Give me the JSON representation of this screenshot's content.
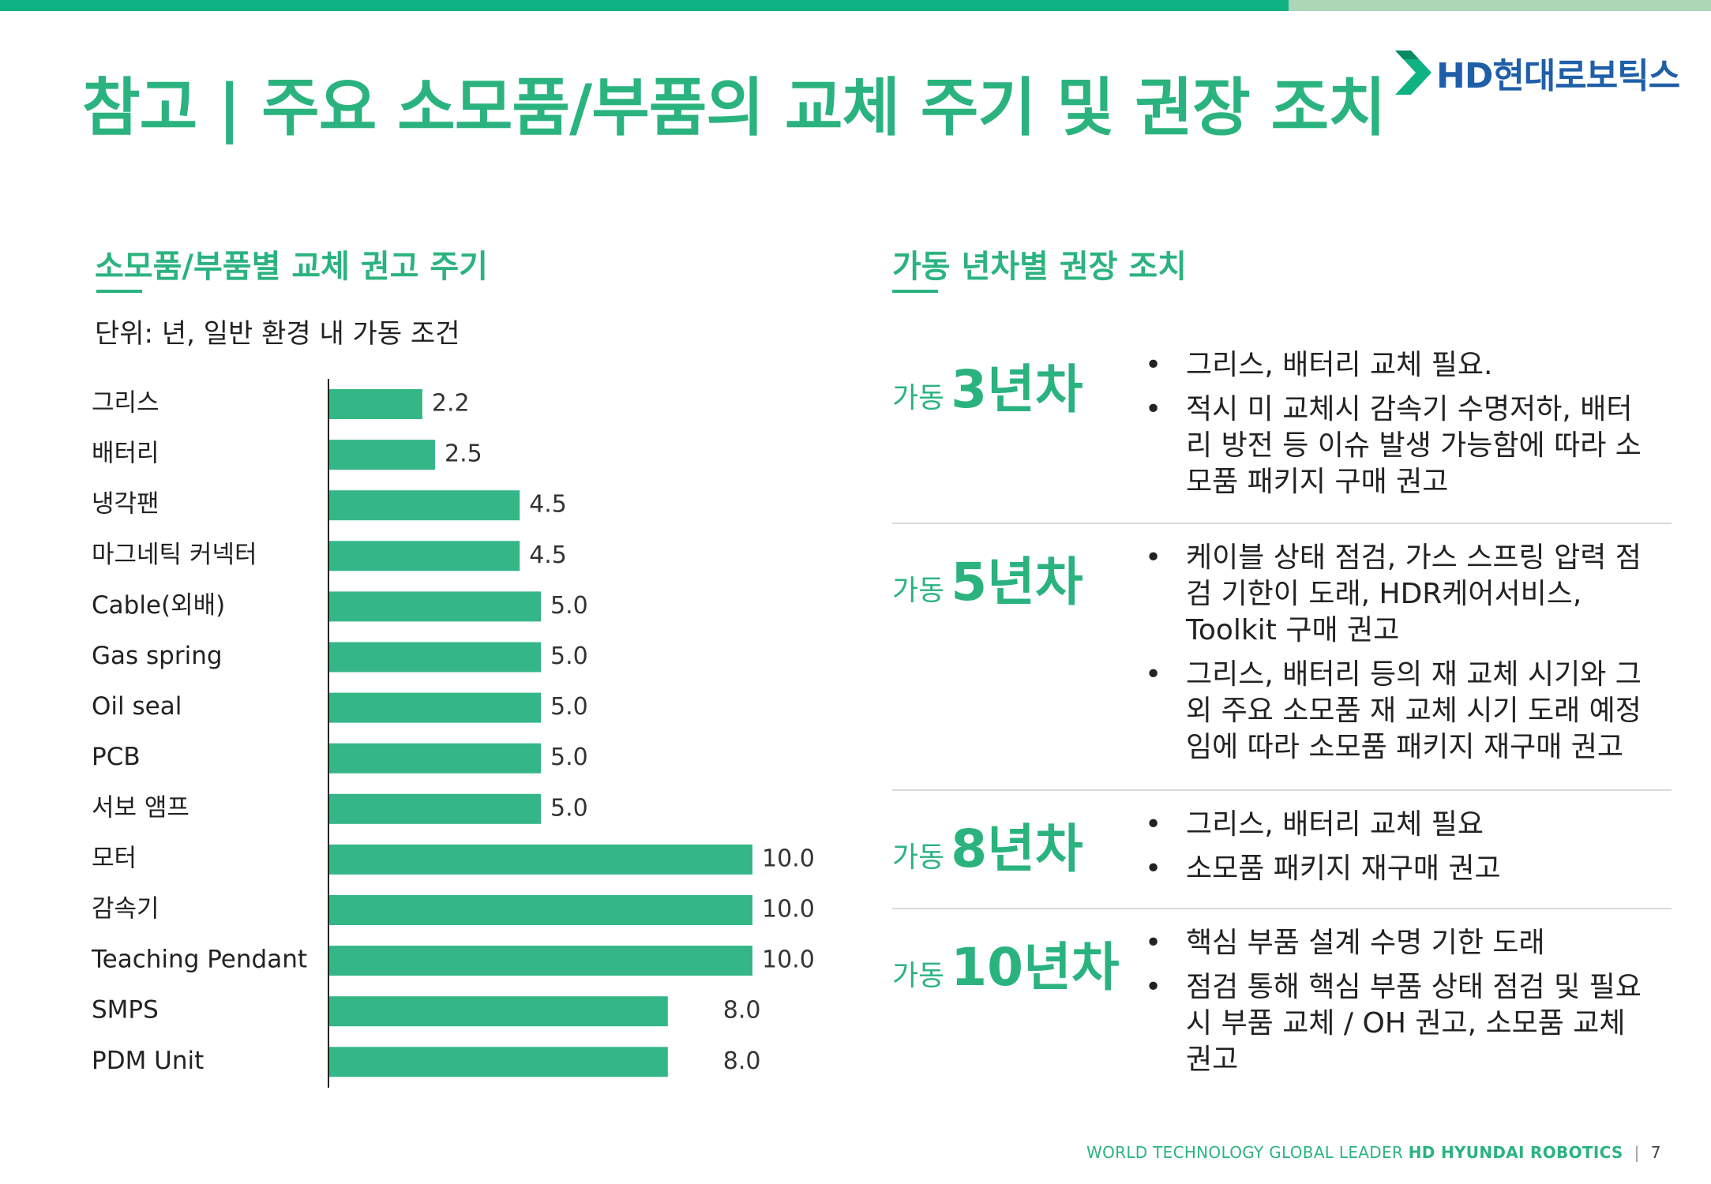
{
  "header": {
    "title": "참고 | 주요 소모품/부품의 교체 주기 및 권장 조치",
    "logo_text": "HD현대로보틱스",
    "logo_mark": "hd-chevron-logo",
    "accent_color": "#0fb283",
    "secondary_bar_color": "#acd6b5"
  },
  "left": {
    "section_title": "소모품/부품별 교체 권고 주기",
    "unit_note": "단위: 년, 일반 환경 내 가동 조건"
  },
  "chart_data": {
    "type": "bar",
    "orientation": "horizontal",
    "categories": [
      "그리스",
      "배터리",
      "냉각팬",
      "마그네틱 커넥터",
      "Cable(외배)",
      "Gas spring",
      "Oil seal",
      "PCB",
      "서보 앰프",
      "모터",
      "감속기",
      "Teaching Pendant",
      "SMPS",
      "PDM Unit"
    ],
    "values": [
      2.2,
      2.5,
      4.5,
      4.5,
      5.0,
      5.0,
      5.0,
      5.0,
      5.0,
      10.0,
      10.0,
      10.0,
      8.0,
      8.0
    ],
    "value_labels": [
      "2.2",
      "2.5",
      "4.5",
      "4.5",
      "5.0",
      "5.0",
      "5.0",
      "5.0",
      "5.0",
      "10.0",
      "10.0",
      "10.0",
      "8.0",
      "8.0"
    ],
    "xlim": [
      0,
      10
    ],
    "bar_color": "#35b687",
    "grid": false
  },
  "right": {
    "section_title": "가동 년차별 권장 조치",
    "plans": [
      {
        "prefix": "가동",
        "year": "3년차",
        "items": [
          "그리스, 배터리 교체 필요.",
          "적시 미 교체시 감속기 수명저하, 배터리 방전 등  이슈 발생 가능함에 따라 소모품 패키지 구매 권고"
        ]
      },
      {
        "prefix": "가동",
        "year": "5년차",
        "items": [
          "케이블 상태 점검, 가스 스프링 압력 점검 기한이 도래,  HDR케어서비스, Toolkit 구매 권고",
          "그리스, 배터리 등의 재 교체 시기와 그 외 주요 소모품 재 교체 시기 도래 예정임에 따라 소모품 패키지 재구매 권고"
        ]
      },
      {
        "prefix": "가동",
        "year": "8년차",
        "items": [
          "그리스, 배터리 교체 필요",
          "소모품 패키지 재구매 권고"
        ]
      },
      {
        "prefix": "가동",
        "year": "10년차",
        "items": [
          "핵심 부품 설계 수명 기한 도래",
          "점검 통해 핵심 부품 상태 점검 및 필요 시 부품 교체 / OH 권고, 소모품 교체 권고"
        ]
      }
    ]
  },
  "footer": {
    "tagline": "WORLD TECHNOLOGY GLOBAL LEADER",
    "brand": "HD HYUNDAI ROBOTICS",
    "separator": "|",
    "page_number": "7"
  }
}
